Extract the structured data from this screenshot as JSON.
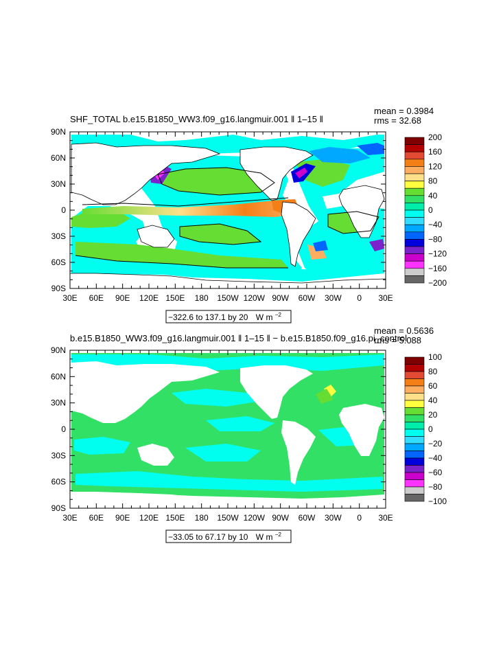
{
  "chart_data": [
    {
      "type": "heatmap",
      "title": "SHF_TOTAL b.e15.B1850_WW3.f09_g16.langmuir.001 ‖ 1–15 ‖",
      "stats": {
        "mean": "mean = 0.3984",
        "rms": "rms = 32.68"
      },
      "x_ticks": [
        "30E",
        "60E",
        "90E",
        "120E",
        "150E",
        "180",
        "150W",
        "120W",
        "90W",
        "60W",
        "30W",
        "0",
        "30E"
      ],
      "y_ticks": [
        "90N",
        "60N",
        "30N",
        "0",
        "30S",
        "60S",
        "90S"
      ],
      "xlim": [
        "30E",
        "30E"
      ],
      "ylim": [
        "90S",
        "90N"
      ],
      "range_label": "−322.6 to 137.1 by 20",
      "units_label": "W m",
      "units_exp": "−2",
      "colorbar": {
        "labels": [
          "200",
          "160",
          "120",
          "80",
          "40",
          "0",
          "−40",
          "−80",
          "−120",
          "−160",
          "−200"
        ],
        "colors": [
          "#7f0000",
          "#b30000",
          "#e34a33",
          "#f57f17",
          "#fdae61",
          "#fee08b",
          "#ffff3f",
          "#66dd33",
          "#33e066",
          "#00eeaa",
          "#00ffee",
          "#33ddff",
          "#00a9ff",
          "#0066ff",
          "#0000dd",
          "#7b22cc",
          "#cc00cc",
          "#ff33ff",
          "#cccccc",
          "#666666"
        ]
      },
      "contour_levels": [
        0
      ]
    },
    {
      "type": "heatmap",
      "title": "b.e15.B1850_WW3.f09_g16.langmuir.001 ‖ 1–15 ‖ − b.e15.B1850.f09_g16.pi_control",
      "stats": {
        "mean": "mean = 0.5636",
        "rms": "rms = 5.088"
      },
      "x_ticks": [
        "30E",
        "60E",
        "90E",
        "120E",
        "150E",
        "180",
        "150W",
        "120W",
        "90W",
        "60W",
        "30W",
        "0",
        "30E"
      ],
      "y_ticks": [
        "90N",
        "60N",
        "30N",
        "0",
        "30S",
        "60S",
        "90S"
      ],
      "xlim": [
        "30E",
        "30E"
      ],
      "ylim": [
        "90S",
        "90N"
      ],
      "range_label": "−33.05 to 67.17 by 10",
      "units_label": "W m",
      "units_exp": "−2",
      "colorbar": {
        "labels": [
          "100",
          "80",
          "60",
          "40",
          "20",
          "0",
          "−20",
          "−40",
          "−60",
          "−80",
          "−100"
        ],
        "colors": [
          "#7f0000",
          "#b30000",
          "#e34a33",
          "#f57f17",
          "#fdae61",
          "#fee08b",
          "#ffff3f",
          "#66dd33",
          "#33e066",
          "#00eeaa",
          "#00ffee",
          "#33ddff",
          "#00a9ff",
          "#0066ff",
          "#0000dd",
          "#7b22cc",
          "#cc00cc",
          "#ff33ff",
          "#cccccc",
          "#666666"
        ]
      }
    }
  ]
}
